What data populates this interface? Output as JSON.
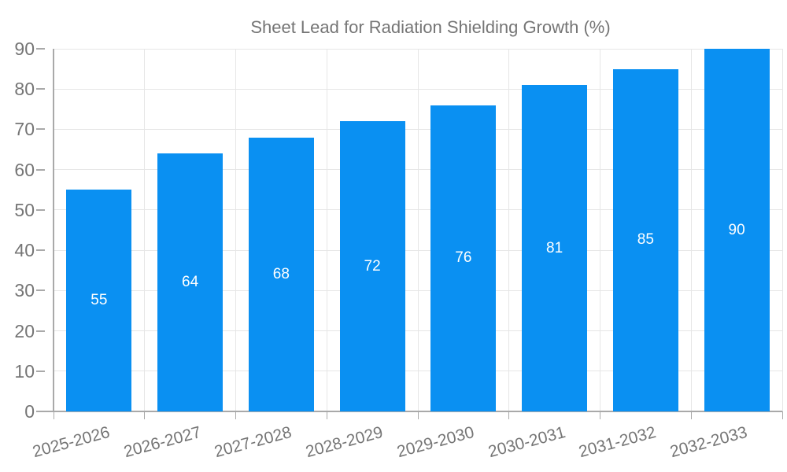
{
  "chart_data": {
    "type": "bar",
    "title": "Sheet Lead for Radiation Shielding Growth (%)",
    "series": [
      {
        "name": "Sheet Lead for Radiation Shielding Growth (%)",
        "values": [
          55,
          64,
          68,
          72,
          76,
          81,
          85,
          90
        ]
      }
    ],
    "categories": [
      "2025-2026",
      "2026-2027",
      "2027-2028",
      "2028-2029",
      "2029-2030",
      "2030-2031",
      "2031-2032",
      "2032-2033"
    ],
    "value_labels": [
      "55",
      "64",
      "68",
      "72",
      "76",
      "81",
      "85",
      "90"
    ],
    "y_tick_labels": [
      "0",
      "10",
      "20",
      "30",
      "40",
      "50",
      "60",
      "70",
      "80",
      "90"
    ],
    "xlabel": "",
    "ylabel": "",
    "ylim": [
      0,
      90
    ],
    "ytick_step": 10,
    "grid": true,
    "legend_position": "top",
    "x_label_rotation_deg": -15,
    "colors": {
      "bar": "#0a90f2",
      "value_label": "#ffffff",
      "axis_text": "#757575",
      "gridline": "#e6e6e6",
      "axis_line": "#a9a9a9"
    }
  },
  "legend": {
    "label": "Sheet Lead for Radiation Shielding Growth (%)"
  }
}
